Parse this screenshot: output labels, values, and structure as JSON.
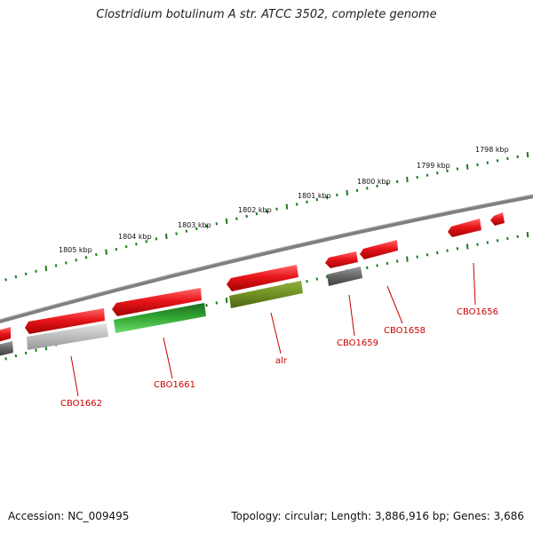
{
  "header": {
    "title": "Clostridium botulinum A str. ATCC 3502, complete genome"
  },
  "footer": {
    "accession": "Accession: NC_009495",
    "topology": "Topology: circular; Length: 3,886,916 bp; Genes: 3,686"
  },
  "ruler": {
    "labels": [
      "1805 kbp",
      "1804 kbp",
      "1803 kbp",
      "1802 kbp",
      "1801 kbp",
      "1800 kbp",
      "1799 kbp",
      "1798 kbp"
    ]
  },
  "gene_labels": [
    {
      "name": "gene-label-cbo1662",
      "text": "CBO1662"
    },
    {
      "name": "gene-label-cbo1661",
      "text": "CBO1661"
    },
    {
      "name": "gene-label-alr",
      "text": "alr"
    },
    {
      "name": "gene-label-cbo1659",
      "text": "CBO1659"
    },
    {
      "name": "gene-label-cbo1658",
      "text": "CBO1658"
    },
    {
      "name": "gene-label-cbo1656",
      "text": "CBO1656"
    }
  ],
  "colors": {
    "label_red": "#cc0000",
    "tick_green": "#1a7a1a",
    "backbone": "#8a8a8a",
    "gene_red": "#e8161b",
    "gene_gray": "#666666",
    "gene_lightgray": "#bbbbbb",
    "gene_green": "#2e9a2e",
    "gene_olive": "#6f8f22"
  }
}
